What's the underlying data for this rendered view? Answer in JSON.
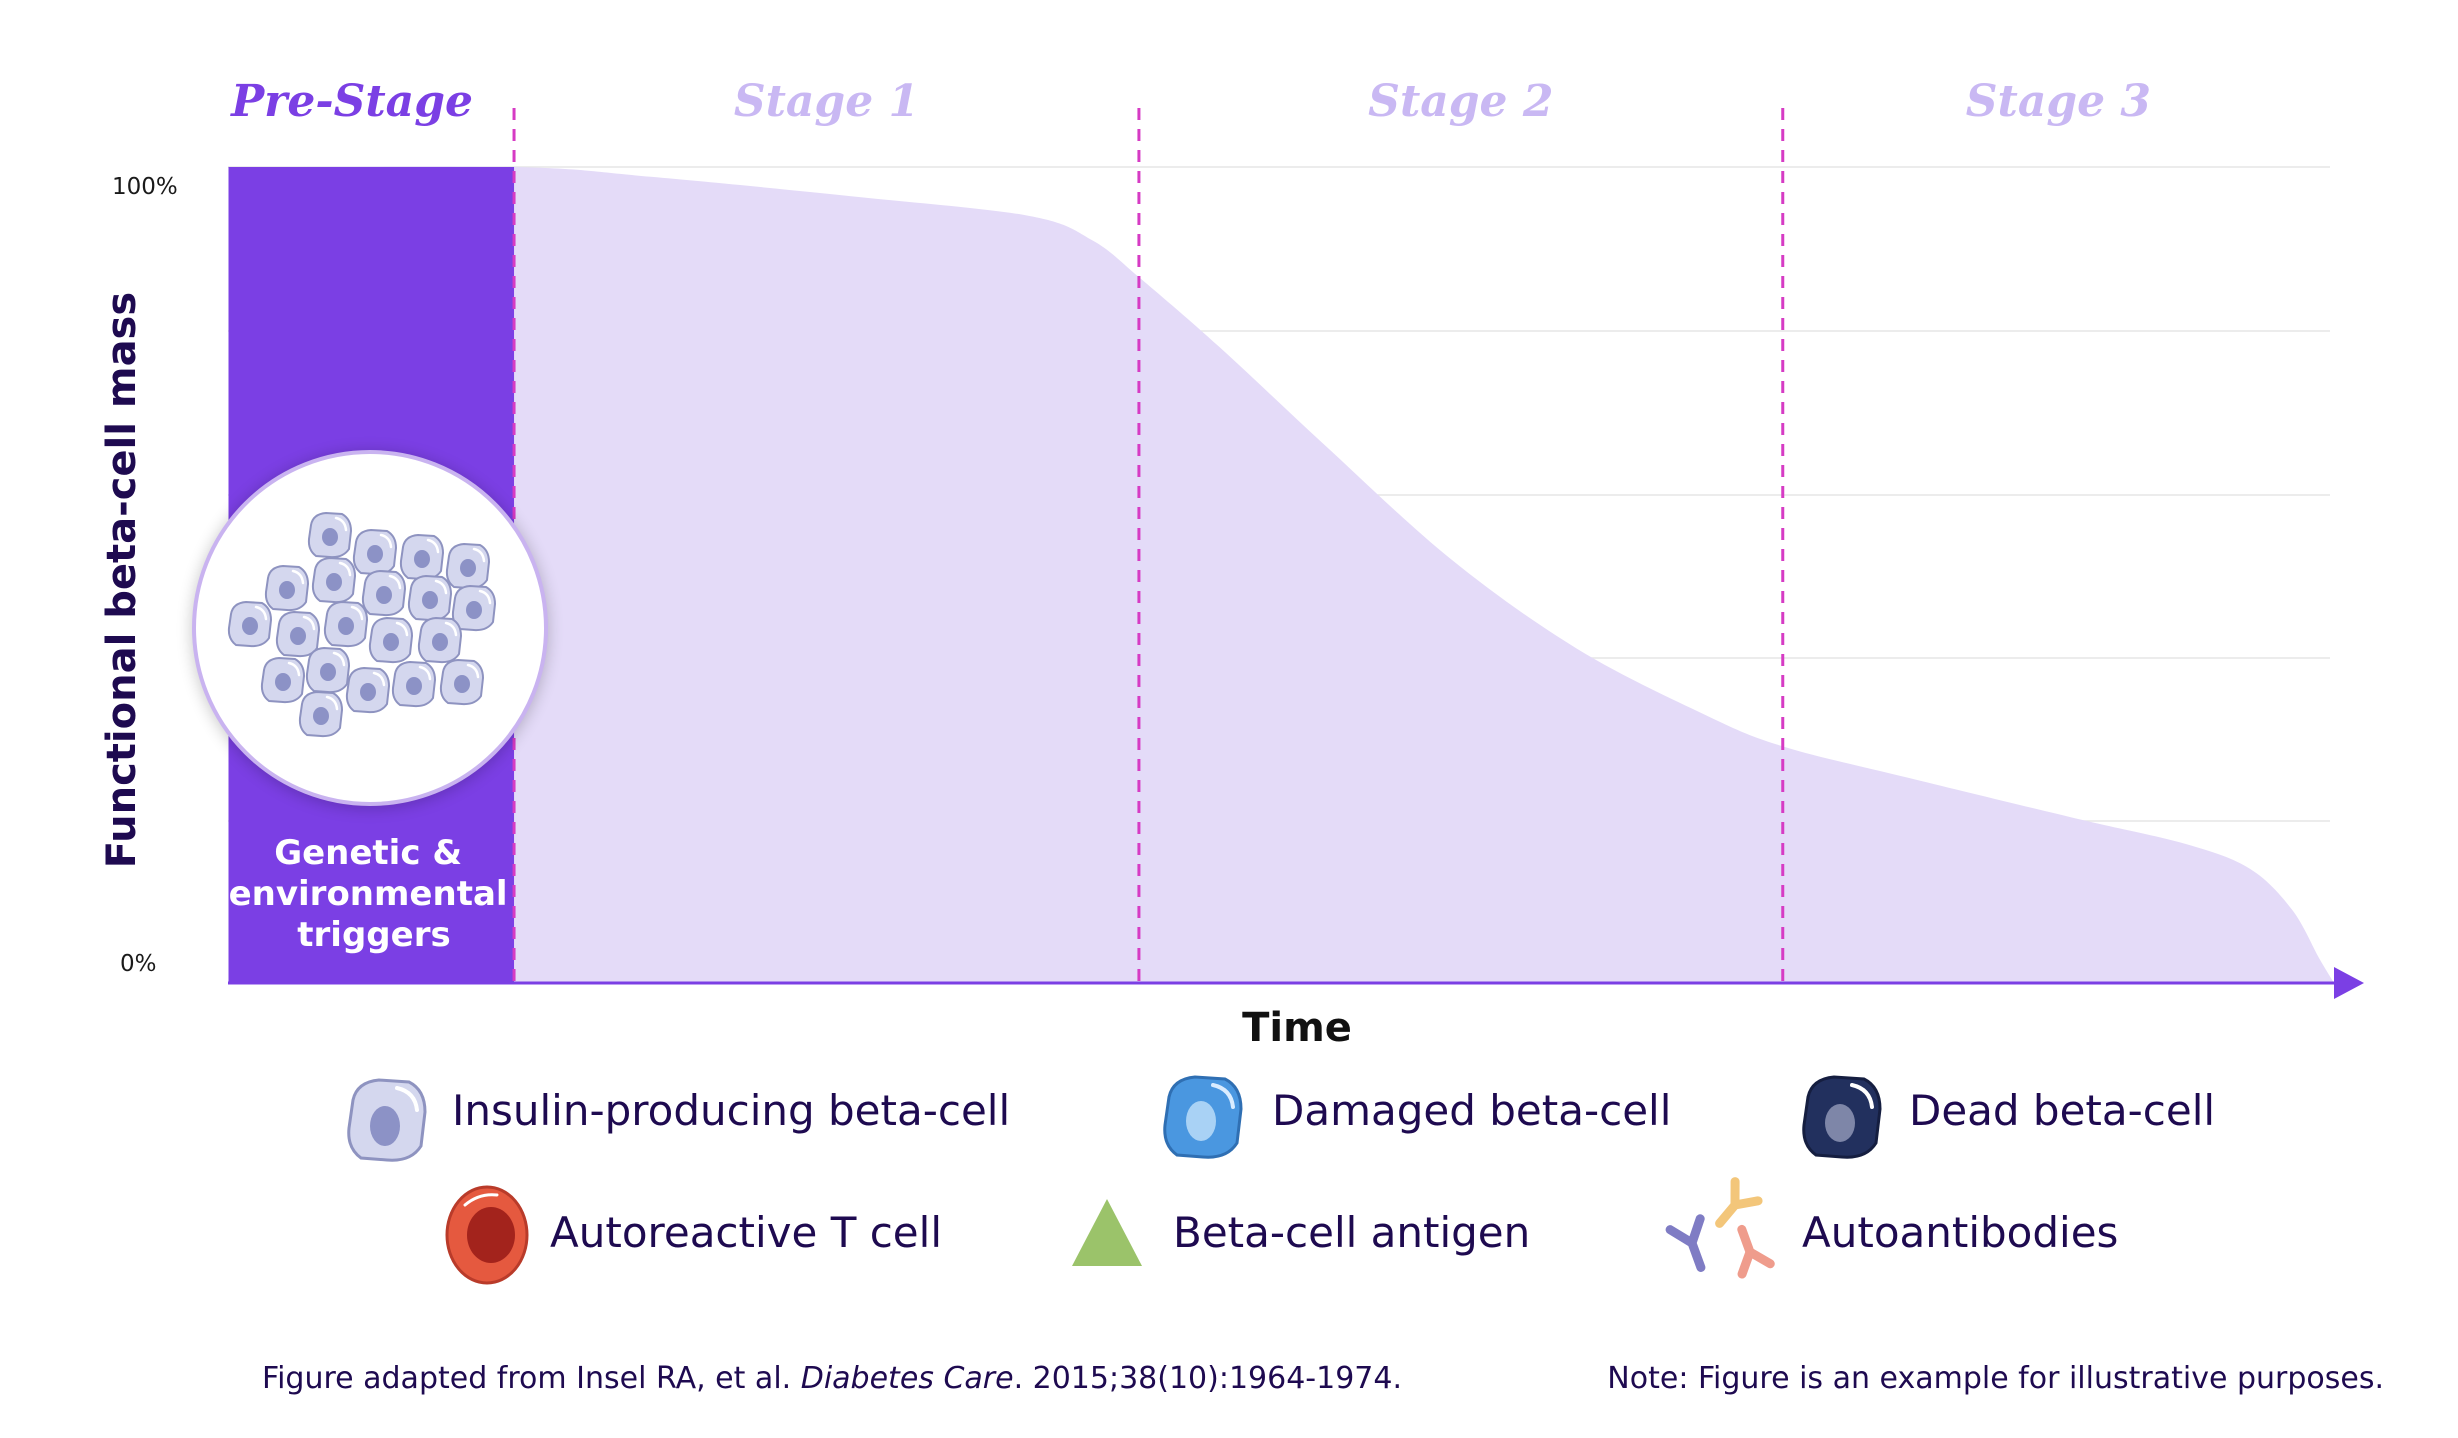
{
  "chart_data": {
    "type": "area",
    "title": "",
    "xlabel": "Time",
    "ylabel": "Functional beta-cell mass",
    "y_ticks": [
      "100%",
      "0%"
    ],
    "ylim": [
      0,
      100
    ],
    "xlim": [
      0,
      100
    ],
    "stages": [
      {
        "name": "Pre-Stage",
        "start": 0,
        "end": 13.5,
        "emphasis": true
      },
      {
        "name": "Stage 1",
        "start": 13.5,
        "end": 43.2,
        "emphasis": false
      },
      {
        "name": "Stage 2",
        "start": 43.2,
        "end": 73.8,
        "emphasis": false
      },
      {
        "name": "Stage 3",
        "start": 73.8,
        "end": 100,
        "emphasis": false
      }
    ],
    "series": [
      {
        "name": "Functional beta-cell mass",
        "x": [
          0,
          13.5,
          20,
          30,
          38,
          41,
          43.2,
          47,
          52,
          58,
          64,
          70,
          73.8,
          80,
          88,
          93,
          96,
          98,
          99.3,
          100
        ],
        "values": [
          100,
          100,
          98.8,
          96.3,
          94,
          91,
          86.5,
          78,
          66,
          52,
          41,
          33,
          29,
          25,
          20,
          17,
          14,
          9,
          3,
          0
        ]
      }
    ],
    "trigger_label": "Genetic & environmental triggers",
    "trigger_lines": [
      "Genetic &",
      "environmental",
      "triggers"
    ]
  },
  "legend": [
    {
      "icon": "insulin-producing-beta-cell-icon",
      "label": "Insulin-producing beta-cell"
    },
    {
      "icon": "damaged-beta-cell-icon",
      "label": "Damaged beta-cell"
    },
    {
      "icon": "dead-beta-cell-icon",
      "label": "Dead beta-cell"
    },
    {
      "icon": "autoreactive-t-cell-icon",
      "label": "Autoreactive T cell"
    },
    {
      "icon": "beta-cell-antigen-icon",
      "label": "Beta-cell antigen"
    },
    {
      "icon": "autoantibodies-icon",
      "label": "Autoantibodies"
    }
  ],
  "footnote": {
    "citation_prefix": "Figure adapted from Insel RA, et al. ",
    "journal": "Diabetes Care",
    "citation_suffix": ". 2015;38(10):1964-1974.",
    "note": "Note: Figure is an example for illustrative purposes."
  },
  "colors": {
    "prestage": "#7b3fe4",
    "prestage_label": "#7b3fe4",
    "stage_label": "#c9b8f3",
    "area_fill": "#e4dbf8",
    "divider": "#d63bc4",
    "axis": "#7b3fe4",
    "grid": "#e6e6e6",
    "healthy_cell": "#d4d7ee",
    "damaged_cell": "#4a97e0",
    "dead_cell": "#22305e",
    "t_cell": "#e5593f",
    "antigen": "#9bc36a"
  }
}
